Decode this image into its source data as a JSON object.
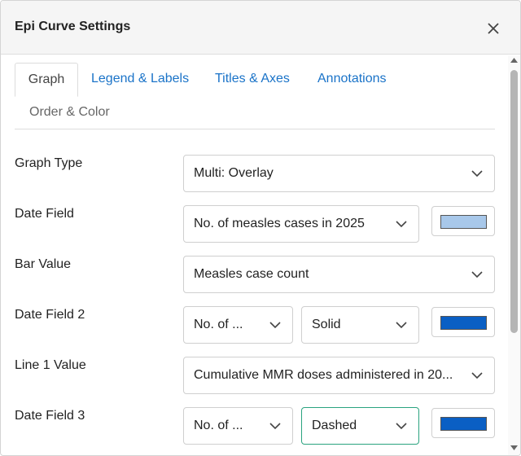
{
  "dialog": {
    "title": "Epi Curve Settings"
  },
  "tabs": [
    {
      "label": "Graph",
      "active": true
    },
    {
      "label": "Legend & Labels"
    },
    {
      "label": "Titles & Axes"
    },
    {
      "label": "Annotations"
    },
    {
      "label": "Order & Color"
    }
  ],
  "fields": {
    "graph_type": {
      "label": "Graph Type",
      "value": "Multi: Overlay"
    },
    "date_field": {
      "label": "Date Field",
      "value": "No. of measles cases in 2025",
      "color": "#a8c8ea"
    },
    "bar_value": {
      "label": "Bar Value",
      "value": "Measles case count"
    },
    "date_field_2": {
      "label": "Date Field 2",
      "value": "No. of ...",
      "style": "Solid",
      "color": "#0a5fc4"
    },
    "line_1_value": {
      "label": "Line 1 Value",
      "value": "Cumulative MMR doses administered in 20..."
    },
    "date_field_3": {
      "label": "Date Field 3",
      "value": "No. of ...",
      "style": "Dashed",
      "color": "#0a5fc4"
    }
  },
  "icons": {
    "close": "close-icon",
    "chevron": "chevron-down-icon"
  }
}
